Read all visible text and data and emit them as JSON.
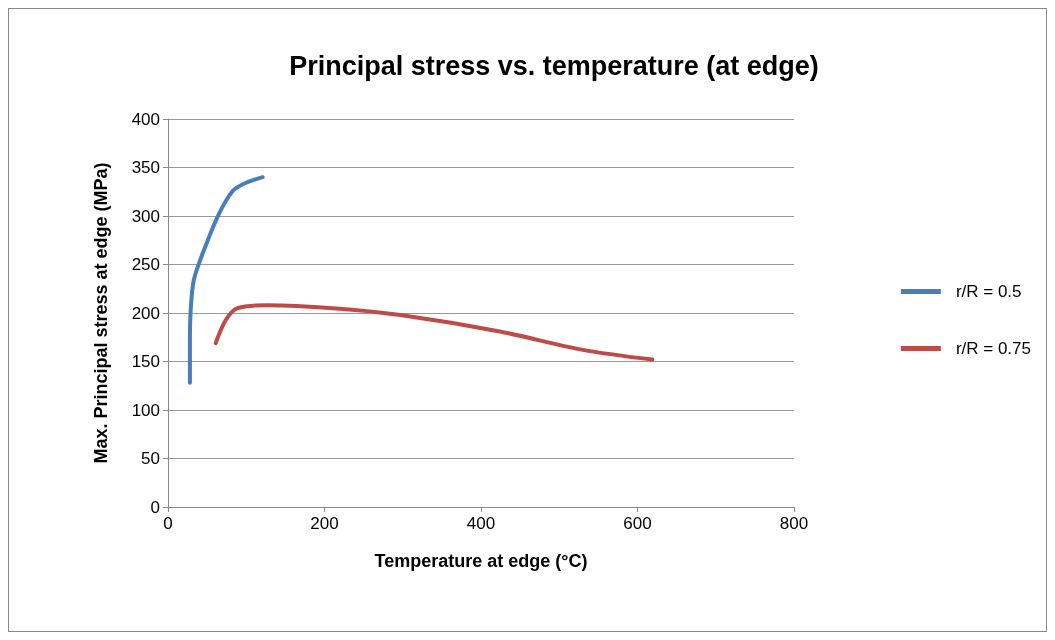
{
  "chart_data": {
    "type": "line",
    "title": "Principal stress vs. temperature (at edge)",
    "xlabel": "Temperature at edge (°C)",
    "ylabel": "Max. Principal stress at edge (MPa)",
    "xlim": [
      0,
      800
    ],
    "xticks": [
      0,
      200,
      400,
      600,
      800
    ],
    "ylim": [
      0,
      400
    ],
    "yticks": [
      0,
      50,
      100,
      150,
      200,
      250,
      300,
      350,
      400
    ],
    "grid": "y",
    "legend": "right",
    "marker": "none",
    "line_style": "solid",
    "series": [
      {
        "name": "r/R = 0.5",
        "color": "#4a7ebb",
        "x": [
          28,
          28,
          29,
          33,
          46,
          65,
          83,
          99,
          121
        ],
        "values": [
          128,
          170,
          203,
          234,
          265,
          302,
          326,
          334,
          340
        ]
      },
      {
        "name": "r/R = 0.75",
        "color": "#be4b48",
        "x": [
          61,
          74,
          89,
          127,
          211,
          297,
          424,
          530,
          619
        ],
        "values": [
          169,
          193,
          205,
          208,
          205,
          198,
          181,
          162,
          152
        ]
      }
    ]
  }
}
